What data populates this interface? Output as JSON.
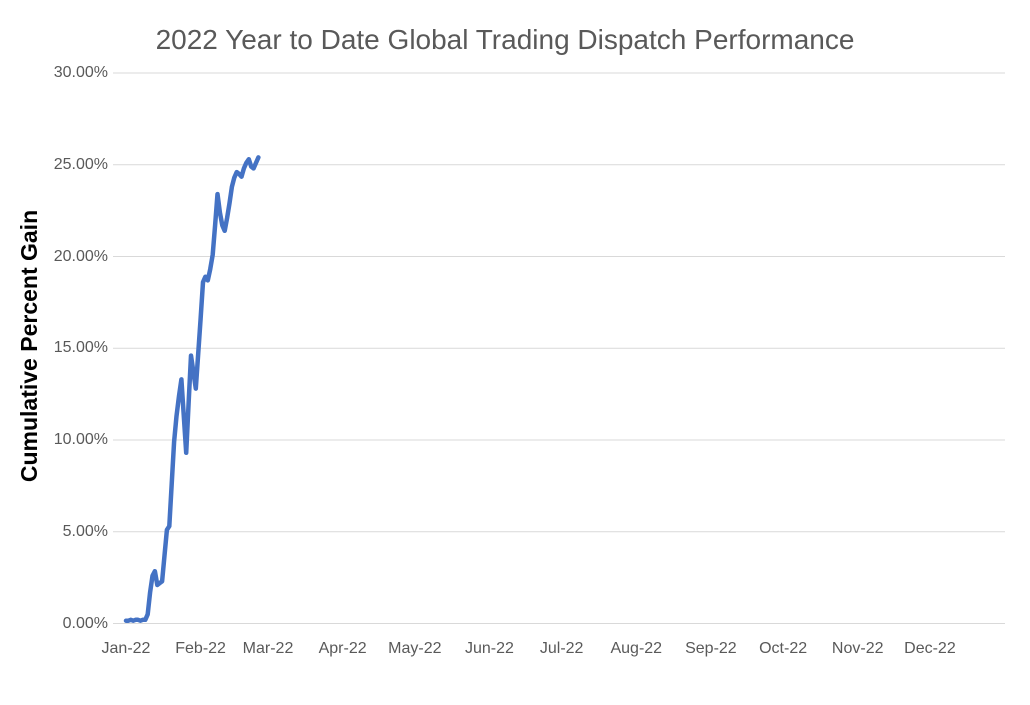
{
  "title": "2022 Year to Date Global Trading Dispatch Performance",
  "y_axis": {
    "title": "Cumulative Percent Gain",
    "tick_labels": [
      "30.00%",
      "25.00%",
      "20.00%",
      "15.00%",
      "10.00%",
      "5.00%",
      "0.00%"
    ]
  },
  "x_axis": {
    "tick_labels": [
      "Jan-22",
      "Feb-22",
      "Mar-22",
      "Apr-22",
      "May-22",
      "Jun-22",
      "Jul-22",
      "Aug-22",
      "Sep-22",
      "Oct-22",
      "Nov-22",
      "Dec-22"
    ]
  },
  "colors": {
    "line": "#4472C4",
    "gridline": "#D9D9D9",
    "title_text": "#595959",
    "tick_text": "#595959",
    "axis_title_text": "#000000",
    "background": "#FFFFFF"
  },
  "chart_data": {
    "type": "line",
    "title": "2022 Year to Date Global Trading Dispatch Performance",
    "xlabel": "",
    "ylabel": "Cumulative Percent Gain",
    "ylim": [
      0,
      30
    ],
    "y_tick_step_pct": 5,
    "x_tick_labels": [
      "Jan-22",
      "Feb-22",
      "Mar-22",
      "Apr-22",
      "May-22",
      "Jun-22",
      "Jul-22",
      "Aug-22",
      "Sep-22",
      "Oct-22",
      "Nov-22",
      "Dec-22"
    ],
    "grid": "horizontal",
    "legend": "none",
    "series": [
      {
        "name": "Cumulative Percent Gain",
        "color": "#4472C4",
        "points": [
          {
            "d": "Jan 1",
            "v": 0.15
          },
          {
            "d": "Jan 2",
            "v": 0.15
          },
          {
            "d": "Jan 3",
            "v": 0.2
          },
          {
            "d": "Jan 4",
            "v": 0.15
          },
          {
            "d": "Jan 5",
            "v": 0.2
          },
          {
            "d": "Jan 6",
            "v": 0.2
          },
          {
            "d": "Jan 7",
            "v": 0.15
          },
          {
            "d": "Jan 8",
            "v": 0.2
          },
          {
            "d": "Jan 9",
            "v": 0.2
          },
          {
            "d": "Jan 10",
            "v": 0.5
          },
          {
            "d": "Jan 11",
            "v": 1.7
          },
          {
            "d": "Jan 12",
            "v": 2.6
          },
          {
            "d": "Jan 13",
            "v": 2.85
          },
          {
            "d": "Jan 14",
            "v": 2.1
          },
          {
            "d": "Jan 15",
            "v": 2.2
          },
          {
            "d": "Jan 16",
            "v": 2.3
          },
          {
            "d": "Jan 17",
            "v": 3.7
          },
          {
            "d": "Jan 18",
            "v": 5.1
          },
          {
            "d": "Jan 19",
            "v": 5.3
          },
          {
            "d": "Jan 20",
            "v": 7.6
          },
          {
            "d": "Jan 21",
            "v": 9.9
          },
          {
            "d": "Jan 22",
            "v": 11.3
          },
          {
            "d": "Jan 23",
            "v": 12.4
          },
          {
            "d": "Jan 24",
            "v": 13.3
          },
          {
            "d": "Jan 25",
            "v": 11.3
          },
          {
            "d": "Jan 26",
            "v": 9.3
          },
          {
            "d": "Jan 27",
            "v": 12.0
          },
          {
            "d": "Jan 28",
            "v": 14.6
          },
          {
            "d": "Jan 29",
            "v": 13.7
          },
          {
            "d": "Jan 30",
            "v": 12.8
          },
          {
            "d": "Jan 31",
            "v": 14.7
          },
          {
            "d": "Feb 1",
            "v": 16.6
          },
          {
            "d": "Feb 2",
            "v": 18.6
          },
          {
            "d": "Feb 3",
            "v": 18.9
          },
          {
            "d": "Feb 4",
            "v": 18.7
          },
          {
            "d": "Feb 5",
            "v": 19.3
          },
          {
            "d": "Feb 6",
            "v": 20.1
          },
          {
            "d": "Feb 7",
            "v": 21.7
          },
          {
            "d": "Feb 8",
            "v": 23.4
          },
          {
            "d": "Feb 9",
            "v": 22.4
          },
          {
            "d": "Feb 10",
            "v": 21.7
          },
          {
            "d": "Feb 11",
            "v": 21.4
          },
          {
            "d": "Feb 12",
            "v": 22.1
          },
          {
            "d": "Feb 13",
            "v": 22.9
          },
          {
            "d": "Feb 14",
            "v": 23.8
          },
          {
            "d": "Feb 15",
            "v": 24.3
          },
          {
            "d": "Feb 16",
            "v": 24.6
          },
          {
            "d": "Feb 17",
            "v": 24.5
          },
          {
            "d": "Feb 18",
            "v": 24.35
          },
          {
            "d": "Feb 19",
            "v": 24.8
          },
          {
            "d": "Feb 20",
            "v": 25.1
          },
          {
            "d": "Feb 21",
            "v": 25.3
          },
          {
            "d": "Feb 22",
            "v": 24.9
          },
          {
            "d": "Feb 23",
            "v": 24.8
          },
          {
            "d": "Feb 24",
            "v": 25.1
          },
          {
            "d": "Feb 25",
            "v": 25.4
          }
        ]
      }
    ]
  }
}
